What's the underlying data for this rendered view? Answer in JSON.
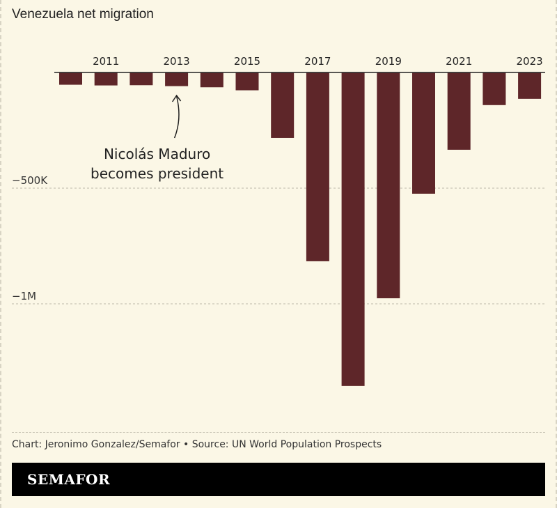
{
  "chart_data": {
    "type": "bar",
    "title": "Venezuela net migration",
    "categories": [
      "2010",
      "2011",
      "2012",
      "2013",
      "2014",
      "2015",
      "2016",
      "2017",
      "2018",
      "2019",
      "2020",
      "2021",
      "2022",
      "2023"
    ],
    "values": [
      -53000,
      -56000,
      -55000,
      -59000,
      -64000,
      -77000,
      -283000,
      -816000,
      -1355000,
      -976000,
      -524000,
      -334000,
      -141000,
      -114000
    ],
    "x_tick_labels": [
      "2011",
      "2013",
      "2015",
      "2017",
      "2019",
      "2021",
      "2023"
    ],
    "y_ticks": [
      {
        "value": -500000,
        "label": "−500K"
      },
      {
        "value": -1000000,
        "label": "−1M"
      }
    ],
    "ylim": [
      -1500000,
      0
    ],
    "grid": true,
    "bar_color": "#5e2629",
    "annotation": {
      "category": "2013",
      "lines": [
        "Nicolás Maduro",
        "becomes president"
      ]
    }
  },
  "credit": "Chart: Jeronimo Gonzalez/Semafor • Source: UN World Population Prospects",
  "brand": "SEMAFOR"
}
